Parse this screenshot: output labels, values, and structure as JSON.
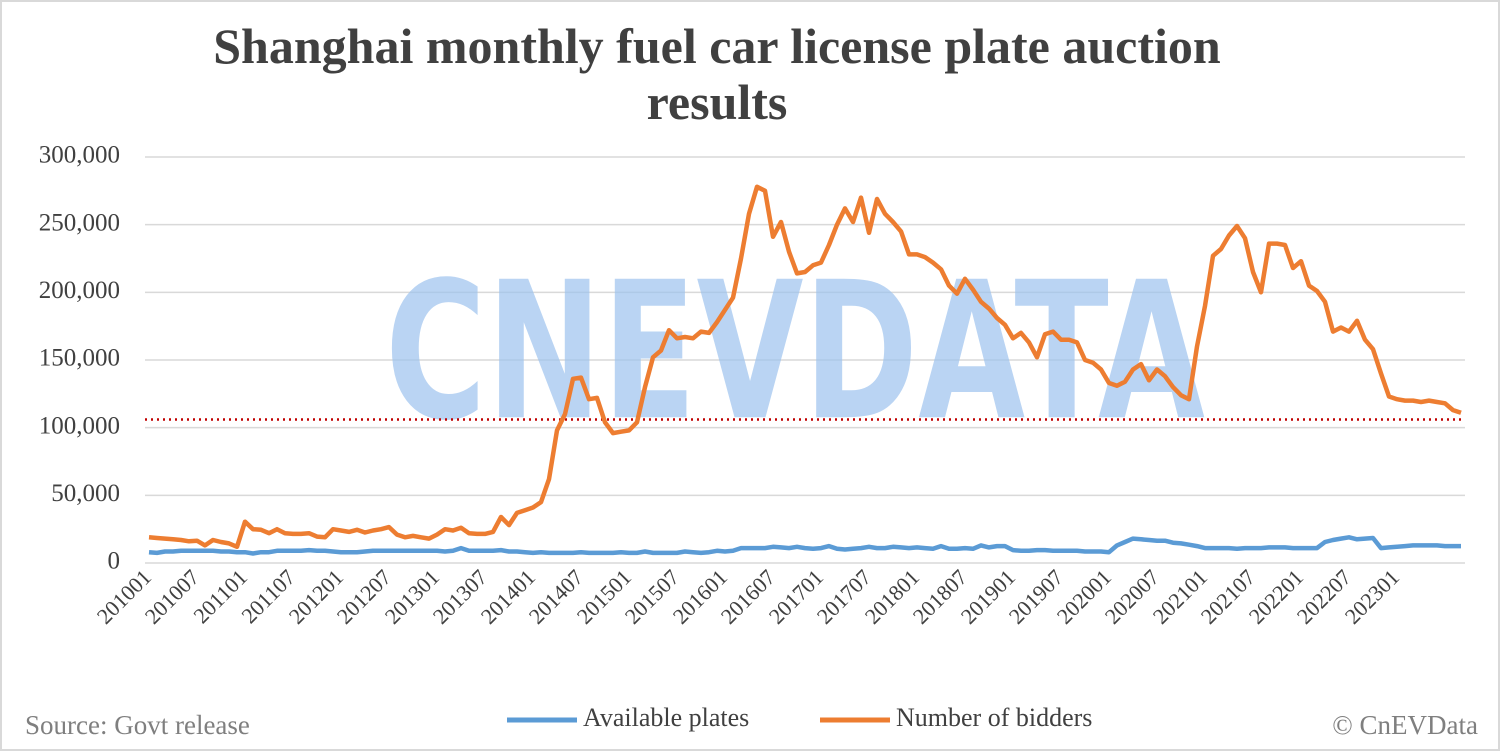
{
  "chart_data": {
    "type": "line",
    "title": "Shanghai monthly fuel car license plate auction results",
    "watermark": "CNEVDATA",
    "source": "Source: Govt release",
    "copyright": "© CnEVData",
    "categories": [
      "201001",
      null,
      null,
      null,
      null,
      null,
      "201007",
      null,
      null,
      null,
      null,
      null,
      "201101",
      null,
      null,
      null,
      null,
      null,
      "201107",
      null,
      null,
      null,
      null,
      null,
      "201201",
      null,
      null,
      null,
      null,
      null,
      "201207",
      null,
      null,
      null,
      null,
      null,
      "201301",
      null,
      null,
      null,
      null,
      null,
      "201307",
      null,
      null,
      null,
      null,
      null,
      "201401",
      null,
      null,
      null,
      null,
      null,
      "201407",
      null,
      null,
      null,
      null,
      null,
      "201501",
      null,
      null,
      null,
      null,
      null,
      "201507",
      null,
      null,
      null,
      null,
      null,
      "201601",
      null,
      null,
      null,
      null,
      null,
      "201607",
      null,
      null,
      null,
      null,
      null,
      "201701",
      null,
      null,
      null,
      null,
      null,
      "201707",
      null,
      null,
      null,
      null,
      null,
      "201801",
      null,
      null,
      null,
      null,
      null,
      "201807",
      null,
      null,
      null,
      null,
      null,
      "201901",
      null,
      null,
      null,
      null,
      null,
      "201907",
      null,
      null,
      null,
      null,
      null,
      "202001",
      null,
      null,
      null,
      null,
      null,
      "202007",
      null,
      null,
      null,
      null,
      null,
      "202101",
      null,
      null,
      null,
      null,
      null,
      "202107",
      null,
      null,
      null,
      null,
      null,
      "202201",
      null,
      null,
      null,
      null,
      null,
      "202207",
      null,
      null,
      null,
      null,
      null,
      "202301",
      null,
      null,
      null,
      null,
      null,
      null,
      null,
      null
    ],
    "series": [
      {
        "name": "Available plates",
        "color": "#5b9bd5",
        "values": [
          8000,
          7500,
          8500,
          8500,
          9000,
          9000,
          9000,
          9000,
          9000,
          8500,
          8500,
          8000,
          8000,
          7000,
          8000,
          8000,
          9000,
          9000,
          9000,
          9000,
          9500,
          9000,
          9000,
          8500,
          8000,
          8000,
          8000,
          8500,
          9000,
          9000,
          9000,
          9000,
          9000,
          9000,
          9000,
          9000,
          9000,
          8500,
          9000,
          11000,
          9000,
          9000,
          9000,
          9000,
          9500,
          8500,
          8500,
          8000,
          7500,
          8000,
          7500,
          7500,
          7500,
          7500,
          8000,
          7500,
          7500,
          7500,
          7500,
          8000,
          7500,
          7500,
          8500,
          7500,
          7500,
          7500,
          7500,
          8500,
          8000,
          7500,
          8000,
          9000,
          8500,
          9000,
          11000,
          11000,
          11000,
          11000,
          12000,
          11500,
          11000,
          12000,
          11000,
          10500,
          11000,
          12500,
          10500,
          10000,
          10500,
          11000,
          12000,
          11000,
          11000,
          12000,
          11500,
          11000,
          11500,
          11000,
          10500,
          12500,
          10500,
          10500,
          11000,
          10500,
          13000,
          11500,
          12500,
          12500,
          9500,
          9000,
          9000,
          9500,
          9500,
          9000,
          9000,
          9000,
          9000,
          8500,
          8500,
          8500,
          8000,
          13000,
          15500,
          18000,
          17500,
          17000,
          16500,
          16500,
          15000,
          14500,
          13500,
          12500,
          11000,
          11000,
          11000,
          11000,
          10500,
          11000,
          11000,
          11000,
          11500,
          11500,
          11500,
          11000,
          11000,
          11000,
          11000,
          15500,
          17000,
          18000,
          19000,
          17500,
          18000,
          18500,
          11000,
          11500,
          12000,
          12500,
          13000,
          13000,
          13000,
          13000,
          12500,
          12500,
          12500
        ]
      },
      {
        "name": "Number of bidders",
        "color": "#ed7d31",
        "values": [
          19000,
          18500,
          18000,
          17500,
          17000,
          16000,
          16500,
          13000,
          17000,
          15500,
          14500,
          12000,
          30500,
          25000,
          24500,
          22000,
          25000,
          22000,
          21500,
          21500,
          22000,
          19500,
          19000,
          25000,
          24000,
          23000,
          24500,
          22500,
          24000,
          25000,
          26500,
          21000,
          19000,
          20000,
          19000,
          18000,
          21000,
          25000,
          24000,
          26000,
          22000,
          21500,
          21500,
          23000,
          34000,
          28000,
          37000,
          39000,
          41000,
          45000,
          62000,
          98000,
          110000,
          136000,
          137000,
          121000,
          122000,
          104000,
          96000,
          97000,
          98000,
          104000,
          130000,
          152000,
          157000,
          172000,
          166000,
          167000,
          166000,
          171000,
          170000,
          178000,
          187000,
          196000,
          225000,
          258000,
          278000,
          275000,
          241000,
          252000,
          230000,
          214000,
          215000,
          220000,
          222000,
          235000,
          250000,
          262000,
          252000,
          270000,
          244000,
          269000,
          258000,
          252000,
          245000,
          228000,
          228000,
          226000,
          222000,
          217000,
          205000,
          199000,
          210000,
          202000,
          193000,
          188000,
          181000,
          176000,
          166000,
          170000,
          163000,
          152000,
          169000,
          171000,
          165000,
          165000,
          163000,
          150000,
          148000,
          143000,
          133000,
          131000,
          134000,
          143000,
          147000,
          135000,
          143000,
          138000,
          130000,
          124000,
          121000,
          160000,
          190000,
          227000,
          232000,
          242000,
          249000,
          240000,
          215000,
          200000,
          236000,
          236000,
          235000,
          218000,
          223000,
          205000,
          201000,
          193000,
          171000,
          174000,
          171000,
          179000,
          165000,
          158000,
          140000,
          123000,
          121000,
          120000,
          120000,
          119000,
          120000,
          119000,
          118000,
          113000,
          111000
        ]
      }
    ],
    "reference_line": {
      "value": 106000,
      "color": "#c00000"
    },
    "ylim": [
      0,
      300000
    ],
    "yticks": [
      0,
      {
        "value": 50000,
        "label": "50,000"
      },
      {
        "value": 100000,
        "label": "100,000"
      },
      {
        "value": 150000,
        "label": "150,000"
      },
      {
        "value": 200000,
        "label": "200,000"
      },
      {
        "value": 250000,
        "label": "250,000"
      },
      {
        "value": 300000,
        "label": "300,000"
      }
    ],
    "grid": true,
    "legend": "bottom"
  }
}
